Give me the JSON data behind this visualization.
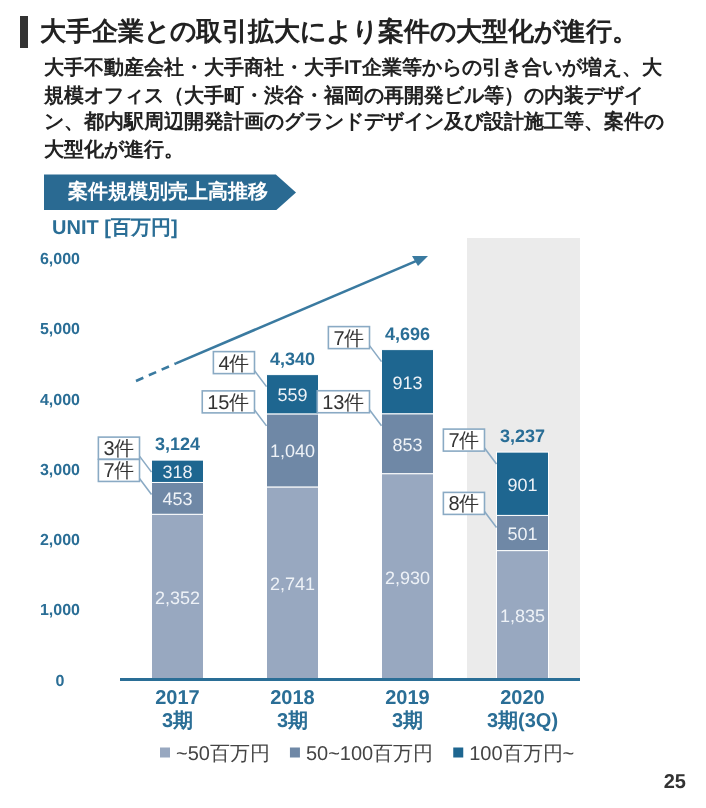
{
  "chart_data": {
    "type": "bar",
    "stacked": true,
    "title": "大手企業との取引拡大により案件の大型化が進行。",
    "subtitle": "大手不動産会社・大手商社・大手IT企業等からの引き合いが増え、大規模オフィス（大手町・渋谷・福岡の再開発ビル等）の内装デザイン、都内駅周辺開発計画のグランドデザイン及び設計施工等、案件の大型化が進行。",
    "ylabel": "UNIT [百万円]",
    "categories": [
      "2017\n3期",
      "2018\n3期",
      "2019\n3期",
      "2020\n3期(3Q)"
    ],
    "series": [
      {
        "name": "~50百万円",
        "color": "#98a8c0",
        "values": [
          2352,
          2741,
          2930,
          1835
        ],
        "value_labels": [
          "2,352",
          "2,741",
          "2,930",
          "1,835"
        ]
      },
      {
        "name": "50~100百万円",
        "color": "#6f88a6",
        "values": [
          453,
          1040,
          853,
          501
        ],
        "value_labels": [
          "453",
          "1,040",
          "853",
          "501"
        ]
      },
      {
        "name": "100百万円~",
        "color": "#1e6690",
        "values": [
          318,
          559,
          913,
          901
        ],
        "value_labels": [
          "318",
          "559",
          "913",
          "901"
        ]
      }
    ],
    "totals": [
      "3,124",
      "4,340",
      "4,696",
      "3,237"
    ],
    "ylim": [
      0,
      6000
    ],
    "yticks": [
      0,
      {
        "value": 1000,
        "label": "1,000"
      },
      {
        "value": 2000,
        "label": "2,000"
      },
      {
        "value": 3000,
        "label": "3,000"
      },
      {
        "value": 4000,
        "label": "4,000"
      },
      {
        "value": 5000,
        "label": "5,000"
      },
      {
        "value": 6000,
        "label": "6,000"
      }
    ],
    "grid": false,
    "legend": "bottom",
    "bands": [
      {
        "axis": "x",
        "from": "2020\n3期(3Q)",
        "to": "2020\n3期(3Q)",
        "color": "#ebebeb"
      }
    ],
    "annotations": [
      "案件規模別売上高推移",
      "25",
      {
        "text": "7件",
        "x": "2017\n3期",
        "y": 2805
      },
      {
        "text": "3件",
        "x": "2017\n3期",
        "y": 3123
      },
      {
        "text": "15件",
        "x": "2018\n3期",
        "y": 3781
      },
      {
        "text": "4件",
        "x": "2018\n3期",
        "y": 4340
      },
      {
        "text": "13件",
        "x": "2019\n3期",
        "y": 3783
      },
      {
        "text": "7件",
        "x": "2019\n3期",
        "y": 4696
      },
      {
        "text": "8件",
        "x": "2020\n3期(3Q)",
        "y": 2336
      },
      {
        "text": "7件",
        "x": "2020\n3期(3Q)",
        "y": 3237
      }
    ]
  }
}
